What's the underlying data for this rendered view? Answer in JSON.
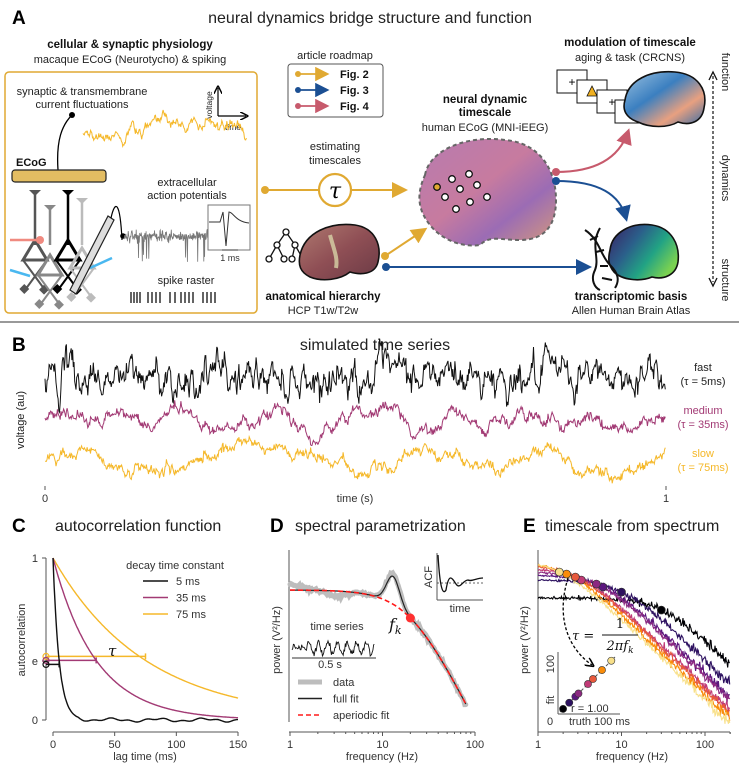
{
  "panel_a": {
    "label": "A",
    "title": "neural dynamics bridge structure and function",
    "physiology": {
      "title": "cellular & synaptic physiology",
      "subtitle": "macaque ECoG (Neurotycho) & spiking",
      "fluct_line1": "synaptic & transmembrane",
      "fluct_line2": "current fluctuations",
      "axis_y": "voltage",
      "axis_x": "time",
      "ecog": "ECoG",
      "ap_line1": "extracellular",
      "ap_line2": "action potentials",
      "scale_bar": "1 ms",
      "raster": "spike raster"
    },
    "roadmap": {
      "title": "article roadmap",
      "items": [
        {
          "label": "Fig. 2",
          "color": "#e0a932"
        },
        {
          "label": "Fig. 3",
          "color": "#1b4f93"
        },
        {
          "label": "Fig. 4",
          "color": "#c75a6c"
        }
      ]
    },
    "estimating_line1": "estimating",
    "estimating_line2": "timescales",
    "tau_symbol": "τ",
    "neural": {
      "title_line1": "neural dynamic",
      "title_line2": "timescale",
      "subtitle": "human ECoG (MNI-iEEG)"
    },
    "modulation": {
      "title": "modulation of timescale",
      "subtitle": "aging & task (CRCNS)"
    },
    "anatomy": {
      "title": "anatomical hierarchy",
      "subtitle": "HCP T1w/T2w"
    },
    "transcriptomic": {
      "title": "transcriptomic basis",
      "subtitle": "Allen Human Brain Atlas"
    },
    "side_axis": {
      "top": "function",
      "middle": "dynamics",
      "bottom": "structure"
    }
  },
  "panel_b": {
    "label": "B",
    "title": "simulated time series",
    "ylabel": "voltage (au)",
    "xlabel": "time (s)",
    "x_ticks": [
      "0",
      "1"
    ],
    "series": [
      {
        "name": "fast",
        "tau_label": "(τ = 5ms)",
        "tau_ms": 5,
        "color": "#111111"
      },
      {
        "name": "medium",
        "tau_label": "(τ = 35ms)",
        "tau_ms": 35,
        "color": "#a23a74"
      },
      {
        "name": "slow",
        "tau_label": "(τ = 75ms)",
        "tau_ms": 75,
        "color": "#f5b82a"
      }
    ]
  },
  "chart_data": [
    {
      "panel": "C",
      "type": "line",
      "title": "autocorrelation function",
      "xlabel": "lag time (ms)",
      "ylabel": "autocorrelation",
      "xlim": [
        0,
        150
      ],
      "ylim": [
        0,
        1
      ],
      "x_ticks": [
        "0",
        "50",
        "100",
        "150"
      ],
      "y_ticks": [
        "0",
        "e",
        "1"
      ],
      "legend_title": "decay time constant",
      "legend_position": "top-right",
      "annotation": "τ",
      "series": [
        {
          "name": "5 ms",
          "tau_ms": 5,
          "color": "#111111"
        },
        {
          "name": "35 ms",
          "tau_ms": 35,
          "color": "#a23a74"
        },
        {
          "name": "75 ms",
          "tau_ms": 75,
          "color": "#f5b82a"
        }
      ]
    },
    {
      "panel": "D",
      "type": "line",
      "title": "spectral parametrization",
      "xlabel": "frequency (Hz)",
      "ylabel": "power (V²/Hz)",
      "x_scale": "log",
      "xlim": [
        1,
        100
      ],
      "x_ticks": [
        "1",
        "10",
        "100"
      ],
      "knee_label": "f",
      "knee_sub": "k",
      "knee_hz": 20,
      "peak_hz": 13,
      "inset_acf": {
        "ylabel": "ACF",
        "xlabel": "time"
      },
      "inset_ts": {
        "title": "time series",
        "scale": "0.5 s"
      },
      "legend": [
        {
          "name": "data",
          "color": "#bdbdbd"
        },
        {
          "name": "full fit",
          "color": "#222222"
        },
        {
          "name": "aperiodic fit",
          "color": "#ff1a1a"
        }
      ]
    },
    {
      "panel": "E",
      "type": "line",
      "title": "timescale from spectrum",
      "xlabel": "frequency (Hz)",
      "ylabel": "power (V²/Hz)",
      "x_scale": "log",
      "xlim": [
        1,
        200
      ],
      "x_ticks": [
        "1",
        "10",
        "100"
      ],
      "formula": {
        "lhs": "τ =",
        "num": "1",
        "den": "2πf",
        "den_sub": "k"
      },
      "knee_hz": [
        30,
        10,
        6,
        5,
        3.3,
        2.8,
        2.2,
        1.8
      ],
      "colors": [
        "#000004",
        "#2d1160",
        "#5b167e",
        "#8c2981",
        "#c03a76",
        "#e8593c",
        "#f98c0a",
        "#f8e08a"
      ],
      "inset": {
        "ylabel": "fit",
        "y_tick": "100",
        "x_tick_0": "0",
        "xlabel": "truth",
        "x_tick_max": "100 ms",
        "r_label": "r = 1.00"
      }
    }
  ]
}
